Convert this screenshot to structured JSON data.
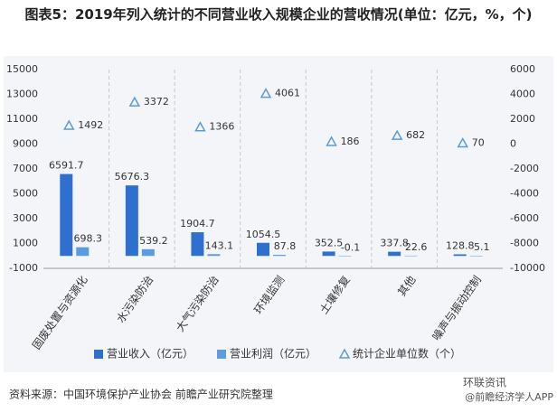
{
  "chart_data": {
    "type": "bar",
    "title": "图表5：2019年列入统计的不同营业收入规模企业的营收情况(单位：亿元，%，个)",
    "categories": [
      "固废处置与资源化",
      "水污染防治",
      "大气污染防治",
      "环境监测",
      "土壤修复",
      "其他",
      "噪声与振动控制"
    ],
    "series": [
      {
        "name": "营业收入（亿元）",
        "color": "#2f6fd0",
        "values": [
          6591.7,
          5676.3,
          1904.7,
          1054.5,
          352.5,
          337.8,
          128.8
        ]
      },
      {
        "name": "营业利润（亿元）",
        "color": "#5b9be0",
        "values": [
          698.3,
          539.2,
          143.1,
          87.8,
          -0.1,
          22.6,
          5.1
        ]
      },
      {
        "name": "统计企业单位数（个）",
        "color": "#5b9bd5",
        "axis": "y2",
        "marker": "triangle",
        "values": [
          1492,
          3372,
          1366,
          4061,
          186,
          682,
          70
        ]
      }
    ],
    "ylim": [
      -1000,
      15000
    ],
    "yticks": [
      -1000,
      1000,
      3000,
      5000,
      7000,
      9000,
      11000,
      13000,
      15000
    ],
    "y2lim": [
      -10000,
      6000
    ],
    "y2ticks": [
      -10000,
      -8000,
      -6000,
      -4000,
      -2000,
      0,
      2000,
      4000,
      6000
    ],
    "grid": false,
    "legend": "bottom",
    "source": "资料来源：中国环境保护产业协会 前瞻产业研究院整理",
    "watermarks": [
      "环联资讯",
      "@前瞻经济学人APP"
    ]
  }
}
